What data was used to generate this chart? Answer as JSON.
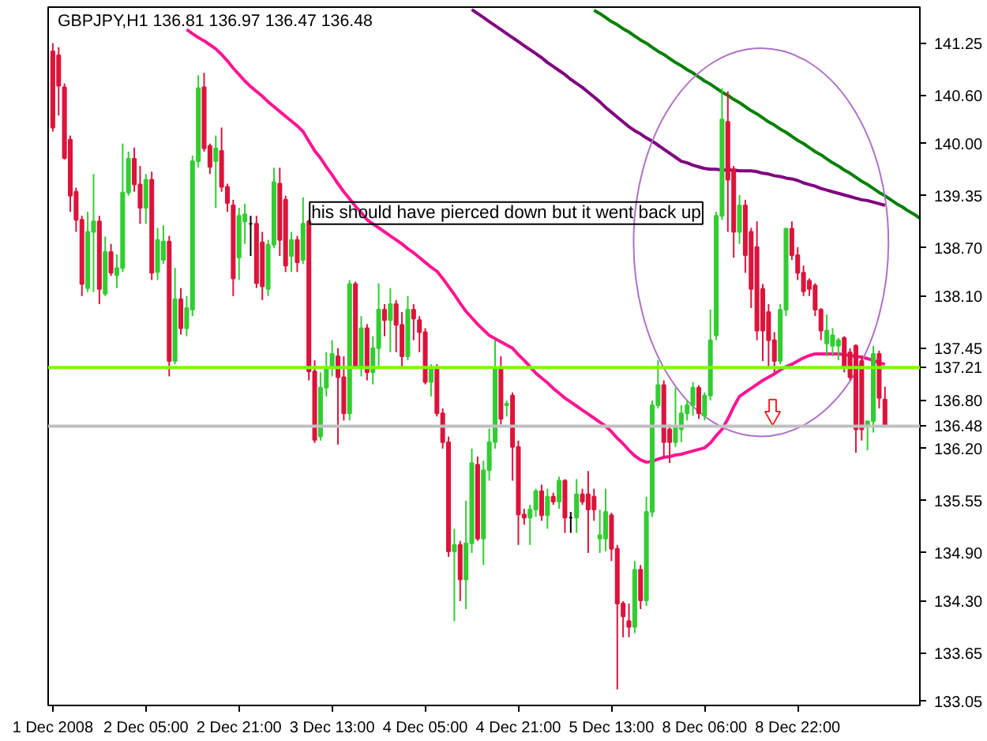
{
  "chart_data": {
    "type": "candlestick",
    "title": "GBPJPY,H1  136.81  136.97  136.47  136.48",
    "annotations": [
      "his should have pierced down but it went back up"
    ],
    "categories": [
      "1 Dec 2008",
      null,
      null,
      null,
      null,
      null,
      null,
      null,
      null,
      null,
      null,
      null,
      null,
      null,
      null,
      null,
      "2 Dec 05:00",
      null,
      null,
      null,
      null,
      null,
      null,
      null,
      null,
      null,
      null,
      null,
      null,
      null,
      null,
      null,
      "2 Dec 21:00",
      null,
      null,
      null,
      null,
      null,
      null,
      null,
      null,
      null,
      null,
      null,
      null,
      null,
      null,
      null,
      "3 Dec 13:00",
      null,
      null,
      null,
      null,
      null,
      null,
      null,
      null,
      null,
      null,
      null,
      null,
      null,
      null,
      null,
      "4 Dec 05:00",
      null,
      null,
      null,
      null,
      null,
      null,
      null,
      null,
      null,
      null,
      null,
      null,
      null,
      null,
      null,
      "4 Dec 21:00",
      null,
      null,
      null,
      null,
      null,
      null,
      null,
      null,
      null,
      null,
      null,
      null,
      null,
      null,
      null,
      "5 Dec 13:00",
      null,
      null,
      null,
      null,
      null,
      null,
      null,
      null,
      null,
      null,
      null,
      null,
      null,
      null,
      null,
      "8 Dec 06:00",
      null,
      null,
      null,
      null,
      null,
      null,
      null,
      null,
      null,
      null,
      null,
      null,
      null,
      null,
      null,
      "8 Dec 22:00",
      null,
      null,
      null,
      null,
      null,
      null,
      null,
      null,
      null,
      null,
      null,
      null,
      null,
      null,
      null,
      null,
      null,
      null,
      null,
      null,
      null
    ],
    "ohlc": [
      [
        141.15,
        141.25,
        140.15,
        140.2
      ],
      [
        141.1,
        141.2,
        140.35,
        140.72
      ],
      [
        140.7,
        140.75,
        139.8,
        139.82
      ],
      [
        140.05,
        140.1,
        139.15,
        139.35
      ],
      [
        139.4,
        139.45,
        138.9,
        139.05
      ],
      [
        139.05,
        139.1,
        138.1,
        138.25
      ],
      [
        138.2,
        139.15,
        138.15,
        138.9
      ],
      [
        138.9,
        139.62,
        138.15,
        139.03
      ],
      [
        139.03,
        139.1,
        138.0,
        138.19
      ],
      [
        138.13,
        138.84,
        138.1,
        138.65
      ],
      [
        138.65,
        138.75,
        138.35,
        138.39
      ],
      [
        138.36,
        138.62,
        138.2,
        138.45
      ],
      [
        138.45,
        140.0,
        138.4,
        139.39
      ],
      [
        139.39,
        139.9,
        139.35,
        139.81
      ],
      [
        139.81,
        139.95,
        139.4,
        139.49
      ],
      [
        139.49,
        139.72,
        139.0,
        139.2
      ],
      [
        139.2,
        139.62,
        139.0,
        139.55
      ],
      [
        139.55,
        139.65,
        138.3,
        138.39
      ],
      [
        138.4,
        138.95,
        138.3,
        138.8
      ],
      [
        138.55,
        138.98,
        138.5,
        138.78
      ],
      [
        138.78,
        138.85,
        137.1,
        137.29
      ],
      [
        137.29,
        138.45,
        137.25,
        138.06
      ],
      [
        138.06,
        138.2,
        137.62,
        137.7
      ],
      [
        137.7,
        138.1,
        137.6,
        137.95
      ],
      [
        137.93,
        139.85,
        137.85,
        139.78
      ],
      [
        139.78,
        140.85,
        139.7,
        140.69
      ],
      [
        140.7,
        140.88,
        139.9,
        139.94
      ],
      [
        139.97,
        140.0,
        139.62,
        139.71
      ],
      [
        139.78,
        140.1,
        139.2,
        139.94
      ],
      [
        139.91,
        140.2,
        139.4,
        139.46
      ],
      [
        139.46,
        139.5,
        139.15,
        139.26
      ],
      [
        139.23,
        139.3,
        138.1,
        138.32
      ],
      [
        138.58,
        139.2,
        138.3,
        139.1
      ],
      [
        139.03,
        139.25,
        138.75,
        139.12
      ],
      [
        139.0,
        139.1,
        138.6,
        139.0
      ],
      [
        139.0,
        139.1,
        138.2,
        138.26
      ],
      [
        138.77,
        138.9,
        138.05,
        138.22
      ],
      [
        138.19,
        138.8,
        138.1,
        138.74
      ],
      [
        138.74,
        139.7,
        138.7,
        139.52
      ],
      [
        139.5,
        139.7,
        138.6,
        138.8
      ],
      [
        139.3,
        139.35,
        138.4,
        138.48
      ],
      [
        138.6,
        138.9,
        138.4,
        138.8
      ],
      [
        138.8,
        138.85,
        138.4,
        138.52
      ],
      [
        138.55,
        139.33,
        138.5,
        139.0
      ],
      [
        139.03,
        139.05,
        137.05,
        137.16
      ],
      [
        137.16,
        137.3,
        136.27,
        136.31
      ],
      [
        136.35,
        137.15,
        136.3,
        136.96
      ],
      [
        136.96,
        137.4,
        136.85,
        137.22
      ],
      [
        137.22,
        137.55,
        137.1,
        137.38
      ],
      [
        137.35,
        137.45,
        136.25,
        137.09
      ],
      [
        137.09,
        137.35,
        136.55,
        136.64
      ],
      [
        136.64,
        138.3,
        136.55,
        138.25
      ],
      [
        138.25,
        138.28,
        137.2,
        137.22
      ],
      [
        137.22,
        137.85,
        137.1,
        137.7
      ],
      [
        137.7,
        137.75,
        137.05,
        137.15
      ],
      [
        137.15,
        137.6,
        137.0,
        137.45
      ],
      [
        137.45,
        138.26,
        137.2,
        137.93
      ],
      [
        137.93,
        138.0,
        137.6,
        137.8
      ],
      [
        137.8,
        138.2,
        137.4,
        138.0
      ],
      [
        138.0,
        138.05,
        137.4,
        137.74
      ],
      [
        137.74,
        137.9,
        137.2,
        137.35
      ],
      [
        137.35,
        138.1,
        137.3,
        137.93
      ],
      [
        137.93,
        138.0,
        137.55,
        137.82
      ],
      [
        137.8,
        137.85,
        137.4,
        137.65
      ],
      [
        137.65,
        137.7,
        137.0,
        137.03
      ],
      [
        137.03,
        137.25,
        136.85,
        137.2
      ],
      [
        137.2,
        137.25,
        136.6,
        136.64
      ],
      [
        136.64,
        136.7,
        136.2,
        136.28
      ],
      [
        136.28,
        136.35,
        134.85,
        134.92
      ],
      [
        134.92,
        135.2,
        134.05,
        135.0
      ],
      [
        135.0,
        135.05,
        134.3,
        134.57
      ],
      [
        134.57,
        135.55,
        134.2,
        135.02
      ],
      [
        135.02,
        136.2,
        134.9,
        136.02
      ],
      [
        136.0,
        136.1,
        135.05,
        135.08
      ],
      [
        135.08,
        136.05,
        134.75,
        135.93
      ],
      [
        135.93,
        136.45,
        135.8,
        136.28
      ],
      [
        136.28,
        137.55,
        136.2,
        137.19
      ],
      [
        137.19,
        137.35,
        136.5,
        136.57
      ],
      [
        136.74,
        136.8,
        136.6,
        136.76
      ],
      [
        136.86,
        136.9,
        135.8,
        136.22
      ],
      [
        136.22,
        136.3,
        135.0,
        135.38
      ],
      [
        135.38,
        135.45,
        135.25,
        135.34
      ],
      [
        135.34,
        135.5,
        135.0,
        135.44
      ],
      [
        135.44,
        135.7,
        135.35,
        135.67
      ],
      [
        135.67,
        135.75,
        135.3,
        135.37
      ],
      [
        135.37,
        135.7,
        135.2,
        135.6
      ],
      [
        135.6,
        135.65,
        135.5,
        135.54
      ],
      [
        135.54,
        135.85,
        135.45,
        135.8
      ],
      [
        135.8,
        135.82,
        135.15,
        135.34
      ],
      [
        135.34,
        135.41,
        135.15,
        135.34
      ],
      [
        135.34,
        135.82,
        135.15,
        135.63
      ],
      [
        135.63,
        135.7,
        135.5,
        135.54
      ],
      [
        135.63,
        135.92,
        134.9,
        135.44
      ],
      [
        135.6,
        135.7,
        135.3,
        135.44
      ],
      [
        135.08,
        135.44,
        134.9,
        135.12
      ],
      [
        135.08,
        135.7,
        134.92,
        135.41
      ],
      [
        135.37,
        135.4,
        134.8,
        134.95
      ],
      [
        134.95,
        135.0,
        133.2,
        134.27
      ],
      [
        134.27,
        134.3,
        133.85,
        134.11
      ],
      [
        134.05,
        134.27,
        133.85,
        133.98
      ],
      [
        133.98,
        134.8,
        133.9,
        134.69
      ],
      [
        134.69,
        134.75,
        134.2,
        134.31
      ],
      [
        134.31,
        135.6,
        134.24,
        135.41
      ],
      [
        135.41,
        136.8,
        135.35,
        136.74
      ],
      [
        136.74,
        137.3,
        136.7,
        136.99
      ],
      [
        136.99,
        137.05,
        136.09,
        136.28
      ],
      [
        136.44,
        136.5,
        136.02,
        136.28
      ],
      [
        136.28,
        136.96,
        136.22,
        136.48
      ],
      [
        136.44,
        136.74,
        136.28,
        136.64
      ],
      [
        136.64,
        136.8,
        136.55,
        136.74
      ],
      [
        136.74,
        137.03,
        136.61,
        136.96
      ],
      [
        136.96,
        136.99,
        136.57,
        136.64
      ],
      [
        136.61,
        136.9,
        136.55,
        136.86
      ],
      [
        136.86,
        137.93,
        136.8,
        137.55
      ],
      [
        137.61,
        139.15,
        137.55,
        139.1
      ],
      [
        139.1,
        140.69,
        139.05,
        140.3
      ],
      [
        140.27,
        140.65,
        138.9,
        139.55
      ],
      [
        139.68,
        139.72,
        138.58,
        138.9
      ],
      [
        138.9,
        139.36,
        138.75,
        139.23
      ],
      [
        139.23,
        139.3,
        138.39,
        138.61
      ],
      [
        138.9,
        138.95,
        137.95,
        138.19
      ],
      [
        138.71,
        139.03,
        137.55,
        137.67
      ],
      [
        138.19,
        138.25,
        137.29,
        137.67
      ],
      [
        137.9,
        138.0,
        137.22,
        137.55
      ],
      [
        137.55,
        137.65,
        137.15,
        137.29
      ],
      [
        137.29,
        138.0,
        137.25,
        137.93
      ],
      [
        137.93,
        138.95,
        137.85,
        138.94
      ],
      [
        138.94,
        139.03,
        138.55,
        138.61
      ],
      [
        138.61,
        138.71,
        138.3,
        138.39
      ],
      [
        138.39,
        138.48,
        138.1,
        138.16
      ],
      [
        138.29,
        138.32,
        138.1,
        138.19
      ],
      [
        138.23,
        138.26,
        137.85,
        137.93
      ],
      [
        137.93,
        137.95,
        137.55,
        137.67
      ],
      [
        137.51,
        137.87,
        137.35,
        137.67
      ],
      [
        137.48,
        137.7,
        137.35,
        137.61
      ],
      [
        137.48,
        137.58,
        137.3,
        137.55
      ],
      [
        137.58,
        137.6,
        137.15,
        137.22
      ],
      [
        137.4,
        137.45,
        137.05,
        137.09
      ],
      [
        137.48,
        137.5,
        136.15,
        136.44
      ],
      [
        137.29,
        137.35,
        136.3,
        136.44
      ],
      [
        136.48,
        136.54,
        136.18,
        136.54
      ],
      [
        136.54,
        137.48,
        136.4,
        137.38
      ],
      [
        137.38,
        137.42,
        136.7,
        136.83
      ],
      [
        136.81,
        136.97,
        136.47,
        136.48
      ],
      null,
      null,
      null,
      null,
      null,
      null
    ],
    "colors": [
      "#dc143c",
      "#dc143c",
      "#dc143c",
      "#dc143c",
      "#dc143c",
      "#dc143c",
      "#32cd32",
      "#32cd32",
      "#dc143c",
      "#32cd32",
      "#dc143c",
      "#32cd32",
      "#32cd32",
      "#32cd32",
      "#dc143c",
      "#dc143c",
      "#32cd32",
      "#dc143c",
      "#32cd32",
      "#32cd32",
      "#dc143c",
      "#32cd32",
      "#dc143c",
      "#32cd32",
      "#32cd32",
      "#32cd32",
      "#dc143c",
      "#dc143c",
      "#32cd32",
      "#dc143c",
      "#dc143c",
      "#dc143c",
      "#32cd32",
      "#32cd32",
      "#000000",
      "#dc143c",
      "#dc143c",
      "#32cd32",
      "#32cd32",
      "#dc143c",
      "#dc143c",
      "#32cd32",
      "#dc143c",
      "#32cd32",
      "#dc143c",
      "#dc143c",
      "#32cd32",
      "#32cd32",
      "#32cd32",
      "#dc143c",
      "#dc143c",
      "#32cd32",
      "#dc143c",
      "#32cd32",
      "#dc143c",
      "#32cd32",
      "#32cd32",
      "#dc143c",
      "#32cd32",
      "#dc143c",
      "#dc143c",
      "#32cd32",
      "#dc143c",
      "#dc143c",
      "#dc143c",
      "#32cd32",
      "#dc143c",
      "#dc143c",
      "#dc143c",
      "#32cd32",
      "#dc143c",
      "#32cd32",
      "#32cd32",
      "#dc143c",
      "#32cd32",
      "#32cd32",
      "#32cd32",
      "#dc143c",
      "#32cd32",
      "#dc143c",
      "#dc143c",
      "#dc143c",
      "#32cd32",
      "#32cd32",
      "#dc143c",
      "#32cd32",
      "#dc143c",
      "#32cd32",
      "#dc143c",
      "#000000",
      "#32cd32",
      "#dc143c",
      "#dc143c",
      "#dc143c",
      "#32cd32",
      "#32cd32",
      "#dc143c",
      "#dc143c",
      "#dc143c",
      "#dc143c",
      "#32cd32",
      "#dc143c",
      "#32cd32",
      "#32cd32",
      "#32cd32",
      "#dc143c",
      "#dc143c",
      "#32cd32",
      "#32cd32",
      "#32cd32",
      "#32cd32",
      "#dc143c",
      "#32cd32",
      "#32cd32",
      "#32cd32",
      "#32cd32",
      "#dc143c",
      "#dc143c",
      "#32cd32",
      "#dc143c",
      "#dc143c",
      "#dc143c",
      "#dc143c",
      "#dc143c",
      "#dc143c",
      "#32cd32",
      "#32cd32",
      "#dc143c",
      "#dc143c",
      "#dc143c",
      "#dc143c",
      "#dc143c",
      "#dc143c",
      "#32cd32",
      "#32cd32",
      "#32cd32",
      "#dc143c",
      "#dc143c",
      "#dc143c",
      "#dc143c",
      "#32cd32",
      "#32cd32",
      "#dc143c",
      "#dc143c",
      null,
      null,
      null,
      null,
      null,
      null
    ],
    "series": [
      {
        "type": "line",
        "color": "#ff1493",
        "values": [
          null,
          null,
          null,
          null,
          null,
          null,
          null,
          null,
          null,
          null,
          null,
          null,
          null,
          null,
          null,
          null,
          null,
          null,
          null,
          null,
          null,
          null,
          null,
          141.42,
          141.37,
          141.32,
          141.28,
          141.23,
          141.18,
          141.11,
          141.03,
          140.94,
          140.86,
          140.78,
          140.71,
          140.65,
          140.59,
          140.52,
          140.46,
          140.4,
          140.34,
          140.28,
          140.22,
          140.15,
          140.03,
          139.91,
          139.82,
          139.71,
          139.61,
          139.5,
          139.4,
          139.31,
          139.22,
          139.14,
          139.05,
          139.0,
          138.95,
          138.9,
          138.85,
          138.8,
          138.75,
          138.69,
          138.64,
          138.58,
          138.52,
          138.46,
          138.41,
          138.32,
          138.22,
          138.12,
          138.01,
          137.91,
          137.83,
          137.75,
          137.68,
          137.61,
          137.57,
          137.53,
          137.49,
          137.45,
          137.37,
          137.3,
          137.22,
          137.14,
          137.08,
          137.02,
          136.95,
          136.89,
          136.83,
          136.78,
          136.73,
          136.68,
          136.63,
          136.58,
          136.53,
          136.48,
          136.41,
          136.33,
          136.26,
          136.18,
          136.11,
          136.06,
          136.03,
          136.04,
          136.07,
          136.09,
          136.1,
          136.12,
          136.13,
          136.15,
          136.17,
          136.19,
          136.21,
          136.27,
          136.36,
          136.44,
          136.57,
          136.72,
          136.85,
          136.9,
          136.95,
          137.0,
          137.05,
          137.09,
          137.13,
          137.18,
          137.22,
          137.25,
          137.29,
          137.33,
          137.36,
          137.38,
          137.38,
          137.38,
          137.38,
          137.38,
          137.37,
          137.36,
          137.35,
          137.34,
          137.32,
          137.3,
          137.27,
          137.25,
          null,
          null,
          null,
          null,
          null,
          null
        ]
      },
      {
        "type": "line",
        "color": "#800080",
        "values": [
          null,
          null,
          null,
          null,
          null,
          null,
          null,
          null,
          null,
          null,
          null,
          null,
          null,
          null,
          null,
          null,
          null,
          null,
          null,
          null,
          null,
          null,
          null,
          null,
          null,
          null,
          null,
          null,
          null,
          null,
          null,
          null,
          null,
          null,
          null,
          null,
          null,
          null,
          null,
          null,
          null,
          null,
          null,
          null,
          null,
          null,
          null,
          null,
          null,
          null,
          null,
          null,
          null,
          null,
          null,
          null,
          null,
          null,
          null,
          null,
          null,
          null,
          null,
          null,
          null,
          null,
          null,
          null,
          null,
          null,
          null,
          null,
          141.67,
          141.62,
          141.57,
          141.52,
          141.47,
          141.42,
          141.37,
          141.32,
          141.27,
          141.22,
          141.17,
          141.12,
          141.07,
          141.01,
          140.96,
          140.91,
          140.86,
          140.8,
          140.75,
          140.7,
          140.64,
          140.58,
          140.52,
          140.45,
          140.39,
          140.33,
          140.27,
          140.21,
          140.16,
          140.12,
          140.07,
          140.03,
          139.98,
          139.93,
          139.88,
          139.83,
          139.78,
          139.76,
          139.73,
          139.71,
          139.69,
          139.68,
          139.68,
          139.67,
          139.67,
          139.67,
          139.66,
          139.66,
          139.66,
          139.65,
          139.63,
          139.62,
          139.6,
          139.59,
          139.57,
          139.56,
          139.54,
          139.51,
          139.49,
          139.47,
          139.44,
          139.42,
          139.4,
          139.38,
          139.36,
          139.34,
          139.32,
          139.3,
          139.29,
          139.27,
          139.25,
          139.23,
          null,
          null,
          null,
          null,
          null,
          null
        ]
      },
      {
        "type": "line",
        "color": "#008000",
        "values": [
          null,
          null,
          null,
          null,
          null,
          null,
          null,
          null,
          null,
          null,
          null,
          null,
          null,
          null,
          null,
          null,
          null,
          null,
          null,
          null,
          null,
          null,
          null,
          null,
          null,
          null,
          null,
          null,
          null,
          null,
          null,
          null,
          null,
          null,
          null,
          null,
          null,
          null,
          null,
          null,
          null,
          null,
          null,
          null,
          null,
          null,
          null,
          null,
          null,
          null,
          null,
          null,
          null,
          null,
          null,
          null,
          null,
          null,
          null,
          null,
          null,
          null,
          null,
          null,
          null,
          null,
          null,
          null,
          null,
          null,
          null,
          null,
          null,
          null,
          null,
          null,
          null,
          null,
          null,
          null,
          null,
          null,
          null,
          null,
          null,
          null,
          null,
          null,
          null,
          null,
          null,
          null,
          null,
          141.66,
          141.62,
          141.57,
          141.52,
          141.48,
          141.43,
          141.39,
          141.34,
          141.29,
          141.25,
          141.2,
          141.15,
          141.11,
          141.06,
          141.01,
          140.97,
          140.92,
          140.88,
          140.83,
          140.78,
          140.74,
          140.69,
          140.64,
          140.6,
          140.55,
          140.51,
          140.46,
          140.41,
          140.37,
          140.32,
          140.27,
          140.23,
          140.18,
          140.14,
          140.09,
          140.04,
          140.0,
          139.95,
          139.9,
          139.86,
          139.81,
          139.76,
          139.72,
          139.67,
          139.63,
          139.58,
          139.53,
          139.49,
          139.44,
          139.39,
          139.35,
          139.3,
          139.25,
          139.21,
          139.16,
          139.12,
          139.07
        ]
      }
    ],
    "ref_lines": [
      {
        "axis": "y",
        "value": 137.21,
        "label": "137.21",
        "color": "#7cfc00"
      },
      {
        "axis": "y",
        "value": 136.48,
        "label": "136.48",
        "color": "#c0c0c0"
      }
    ],
    "ylim": [
      133.0,
      141.7
    ],
    "yticks": [
      141.25,
      {
        "value": 140.6,
        "label": "140.60"
      },
      {
        "value": 140.0,
        "label": "140.00"
      },
      139.35,
      {
        "value": 138.7,
        "label": "138.70"
      },
      {
        "value": 138.1,
        "label": "138.10"
      },
      137.45,
      {
        "value": 136.8,
        "label": "136.80"
      },
      {
        "value": 136.2,
        "label": "136.20"
      },
      135.55,
      {
        "value": 134.9,
        "label": "134.90"
      },
      {
        "value": 134.3,
        "label": "134.30"
      },
      133.65,
      133.05
    ]
  }
}
